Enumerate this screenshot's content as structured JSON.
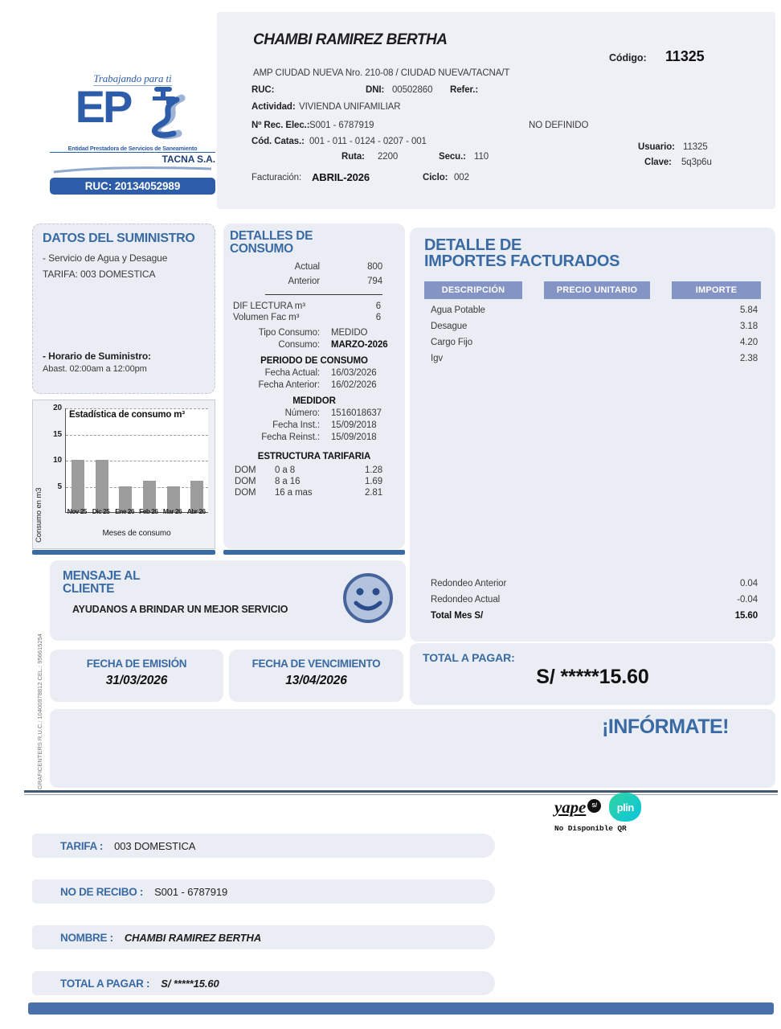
{
  "colors": {
    "accent": "#3a6aa3",
    "panel": "#eaedf4",
    "chip": "#8494c4",
    "logo_blue": "#2d5ca8",
    "bottom_bar": "#4a70ab",
    "bar_gray": "#9c9c9c"
  },
  "logo": {
    "tagline": "Trabajando para ti",
    "brand": "EP",
    "subtitle": "Entidad Prestadora de Servicios de Saneamiento",
    "company": "TACNA S.A.",
    "ruc_bar": "RUC: 20134052989"
  },
  "header": {
    "customer_name": "CHAMBI RAMIREZ BERTHA",
    "codigo_label": "Código:",
    "codigo_value": "11325",
    "address": "AMP CIUDAD NUEVA Nro. 210-08 / CIUDAD NUEVA/TACNA/T",
    "ruc_label": "RUC:",
    "dni_label": "DNI:",
    "dni_value": "00502860",
    "refer_label": "Refer.:",
    "actividad_label": "Actividad:",
    "actividad_value": "VIVIENDA UNIFAMILIAR",
    "rec_elec_label": "Nº Rec. Elec.:",
    "rec_elec_value": "S001 - 6787919",
    "no_definido": "NO DEFINIDO",
    "catas_label": "Cód. Catas.:",
    "catas_value": "001 - 011 - 0124 - 0207 - 001",
    "ruta_label": "Ruta:",
    "ruta_value": "2200",
    "secu_label": "Secu.:",
    "secu_value": "110",
    "usuario_label": "Usuario:",
    "usuario_value": "11325",
    "clave_label": "Clave:",
    "clave_value": "5q3p6u",
    "facturacion_label": "Facturación:",
    "facturacion_value": "ABRIL-2026",
    "ciclo_label": "Ciclo:",
    "ciclo_value": "002"
  },
  "suministro": {
    "title": "DATOS DEL SUMINISTRO",
    "line1": "- Servicio de Agua y Desague",
    "line2": "TARIFA: 003 DOMESTICA",
    "horario_label": "- Horario de Suministro:",
    "horario_value": "Abast. 02:00am a 12:00pm"
  },
  "chart_data": {
    "type": "bar",
    "title": "Estadística de consumo m³",
    "categories": [
      "Nov 25",
      "Dic 25",
      "Ene 26",
      "Feb 26",
      "Mar 26",
      "Abr 26"
    ],
    "values": [
      10,
      10,
      5,
      6,
      5,
      6
    ],
    "xlabel": "Meses de consumo",
    "ylabel": "Consumo en m3",
    "yticks": [
      5,
      10,
      15,
      20
    ],
    "ylim": [
      0,
      20
    ],
    "grid": "horizontal-dashed",
    "legend": "none",
    "bar_color": "#9c9c9c"
  },
  "consumo": {
    "title_line1": "DETALLES DE",
    "title_line2": "CONSUMO",
    "actual_label": "Actual",
    "actual_value": "800",
    "anterior_label": "Anterior",
    "anterior_value": "794",
    "dif_label": "DIF LECTURA m³",
    "dif_value": "6",
    "volumen_label": "Volumen Fac m³",
    "volumen_value": "6",
    "tipo_label": "Tipo Consumo:",
    "tipo_value": "MEDIDO",
    "consumo_label": "Consumo:",
    "consumo_value": "MARZO-2026",
    "periodo_title": "PERIODO DE CONSUMO",
    "fecha_actual_label": "Fecha Actual:",
    "fecha_actual_value": "16/03/2026",
    "fecha_anterior_label": "Fecha Anterior:",
    "fecha_anterior_value": "16/02/2026",
    "medidor_title": "MEDIDOR",
    "numero_label": "Número:",
    "numero_value": "1516018637",
    "fecha_inst_label": "Fecha Inst.:",
    "fecha_inst_value": "15/09/2018",
    "fecha_reinst_label": "Fecha Reinst.:",
    "fecha_reinst_value": "15/09/2018",
    "estructura_title": "ESTRUCTURA TARIFARIA",
    "tarifas": [
      {
        "cat": "DOM",
        "rango": "0 a 8",
        "precio": "1.28"
      },
      {
        "cat": "DOM",
        "rango": "8 a 16",
        "precio": "1.69"
      },
      {
        "cat": "DOM",
        "rango": "16 a mas",
        "precio": "2.81"
      }
    ]
  },
  "importes": {
    "title_line1": "DETALLE DE",
    "title_line2": "IMPORTES FACTURADOS",
    "columns": [
      "DESCRIPCIÓN",
      "PRECIO UNITARIO",
      "IMPORTE"
    ],
    "rows": [
      {
        "desc": "Agua Potable",
        "importe": "5.84"
      },
      {
        "desc": "Desague",
        "importe": "3.18"
      },
      {
        "desc": "Cargo Fijo",
        "importe": "4.20"
      },
      {
        "desc": "Igv",
        "importe": "2.38"
      }
    ],
    "redondeo_anterior_label": "Redondeo Anterior",
    "redondeo_anterior_value": "0.04",
    "redondeo_actual_label": "Redondeo Actual",
    "redondeo_actual_value": "-0.04",
    "total_label": "Total Mes S/",
    "total_value": "15.60"
  },
  "mensaje": {
    "title_line1": "MENSAJE AL",
    "title_line2": "CLIENTE",
    "body": "AYUDANOS A BRINDAR UN MEJOR SERVICIO"
  },
  "emision": {
    "label": "FECHA DE EMISIÓN",
    "value": "31/03/2026"
  },
  "vencimiento": {
    "label": "FECHA DE VENCIMIENTO",
    "value": "13/04/2026"
  },
  "total_pagar": {
    "label": "TOTAL A PAGAR:",
    "value": "S/ *****15.60"
  },
  "informate": "¡INFÓRMATE!",
  "credit_vertical": "GRAFICENTERS   R.U.C.: 10400978812  CEL.: 956615254",
  "payments": {
    "yape": "yape",
    "yape_badge": "S/",
    "plin": "plin",
    "qr_note": "No Disponible QR"
  },
  "stub": {
    "rows": [
      {
        "label": "TARIFA :",
        "value": "003 DOMESTICA",
        "italic": false
      },
      {
        "label": "NO DE RECIBO :",
        "value": "S001 - 6787919",
        "italic": false
      },
      {
        "label": "NOMBRE :",
        "value": "CHAMBI RAMIREZ BERTHA",
        "italic": true
      },
      {
        "label": "TOTAL A PAGAR :",
        "value": "S/ *****15.60",
        "italic": true
      }
    ]
  }
}
